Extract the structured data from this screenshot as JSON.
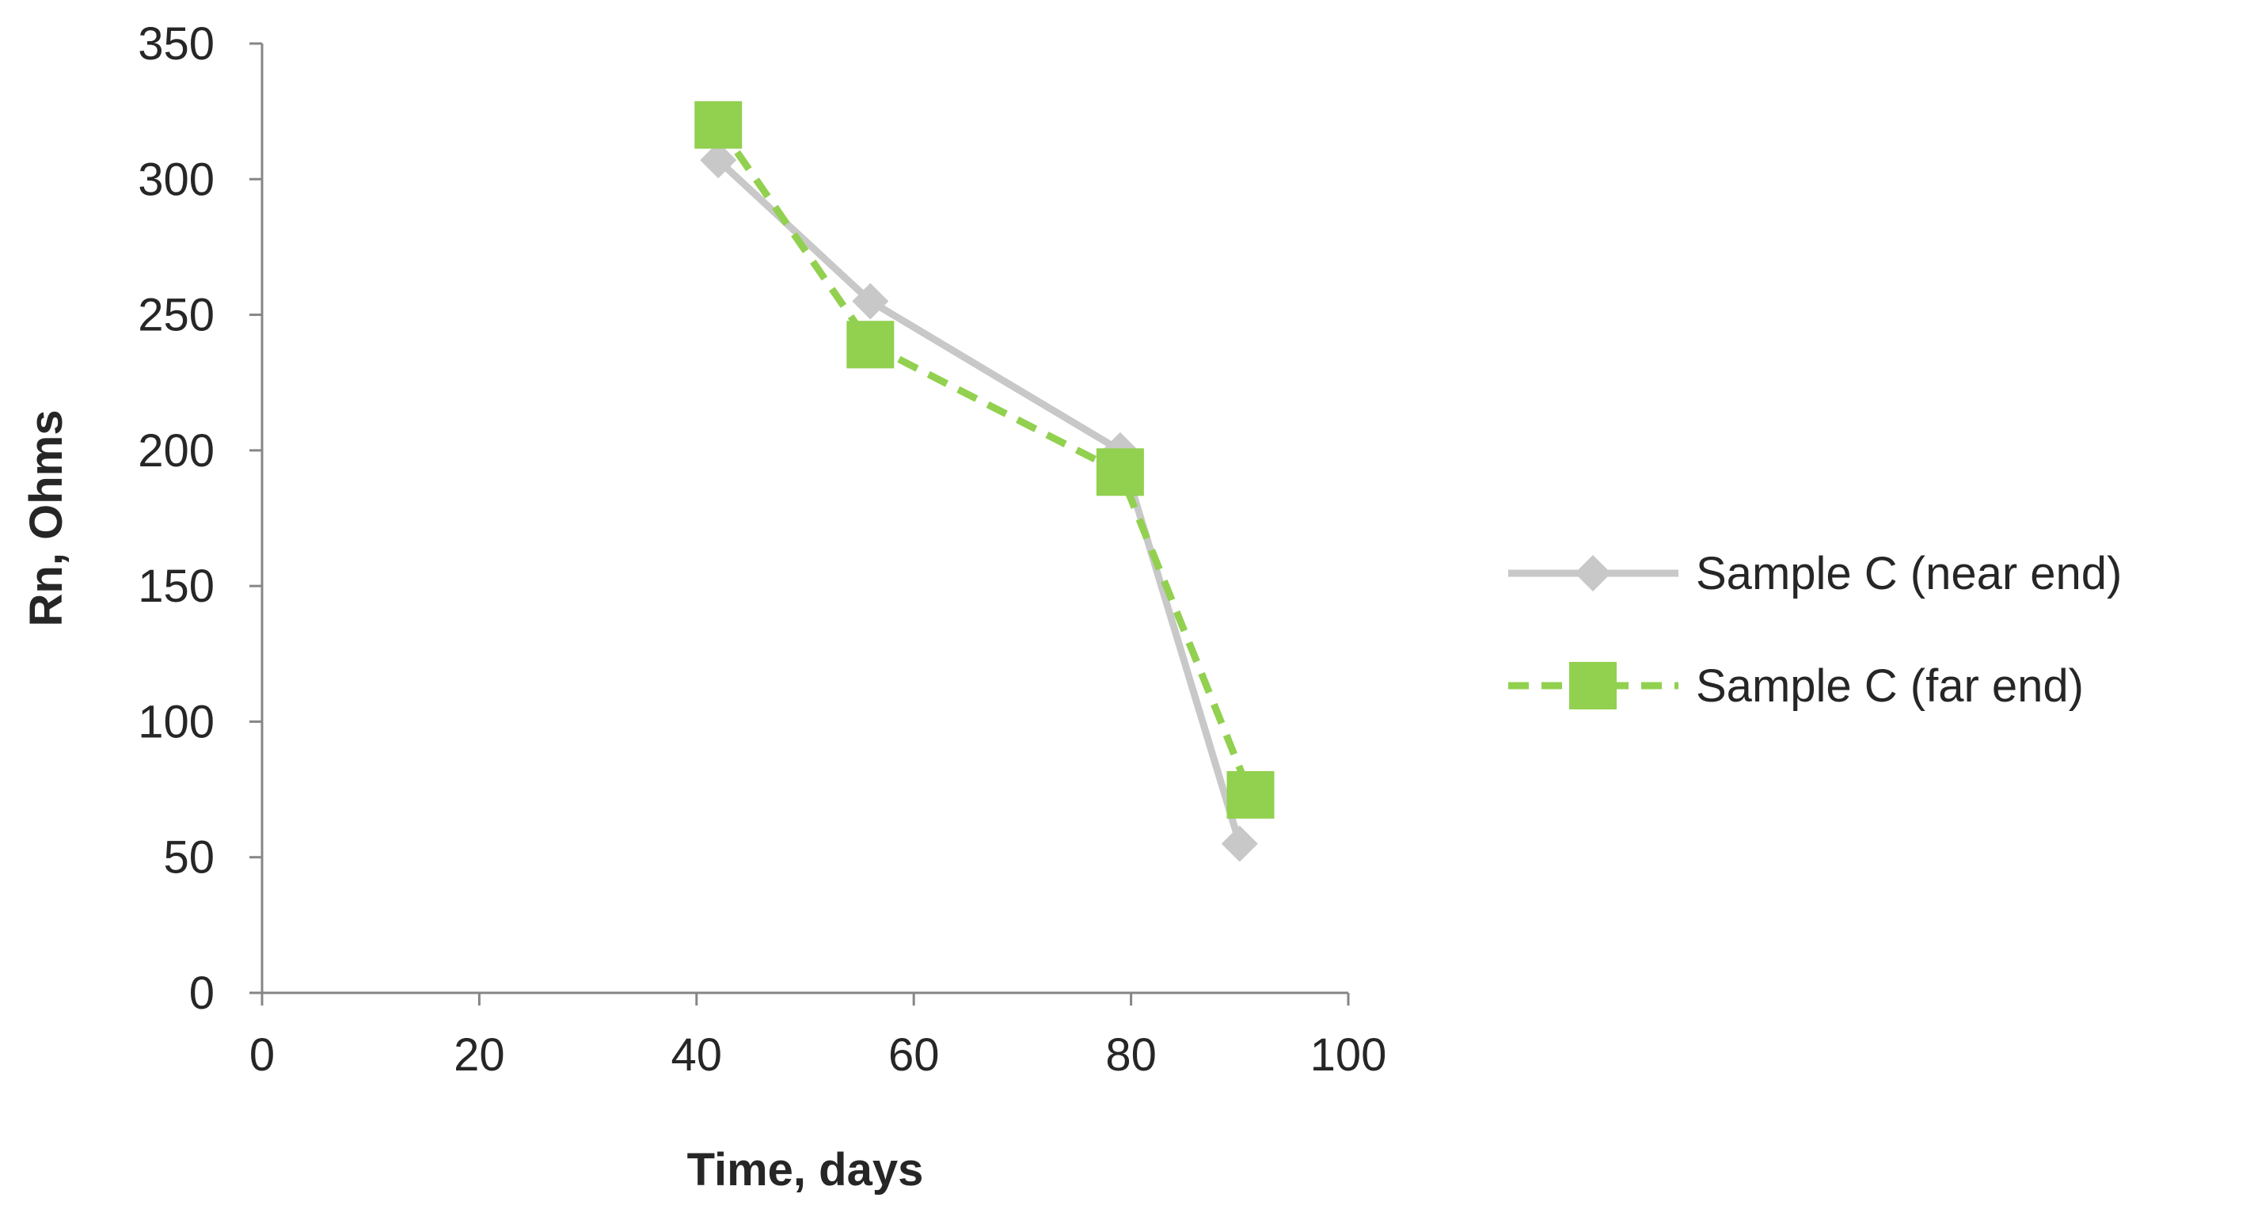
{
  "chart_data": {
    "type": "line",
    "title": "",
    "xlabel": "Time, days",
    "ylabel": "Rn, Ohms",
    "xlim": [
      0,
      100
    ],
    "ylim": [
      0,
      350
    ],
    "x_ticks": [
      0,
      20,
      40,
      60,
      80,
      100
    ],
    "y_ticks": [
      0,
      50,
      100,
      150,
      200,
      250,
      300,
      350
    ],
    "grid": false,
    "legend_position": "right",
    "series": [
      {
        "name": "Sample C (near end)",
        "color": "#c8c8c8",
        "line_style": "solid",
        "marker": "diamond",
        "x": [
          42,
          56,
          79,
          90
        ],
        "y": [
          307,
          255,
          200,
          55
        ]
      },
      {
        "name": "Sample C (far end)",
        "color": "#92d050",
        "line_style": "dashed",
        "marker": "square",
        "x": [
          42,
          56,
          79,
          91
        ],
        "y": [
          320,
          239,
          192,
          73
        ]
      }
    ]
  }
}
